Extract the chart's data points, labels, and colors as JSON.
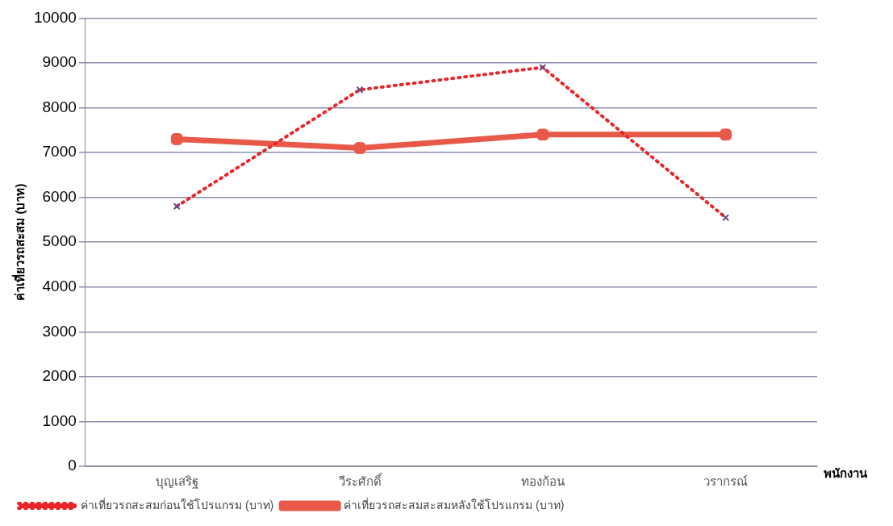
{
  "chart_data": {
    "type": "line",
    "xlabel": "พนักงาน",
    "ylabel": "ค่าเที่ยวรถสะสม (บาท)",
    "categories": [
      "บุญเสริฐ",
      "วีระศักดิ์",
      "ทองก้อน",
      "วรากรณ์"
    ],
    "series": [
      {
        "name": "ค่าเที่ยวรถสะสมก่อนใช้โปรแกรม (บาท)",
        "color": "#e8262a",
        "values": [
          5800,
          8400,
          8900,
          5550
        ],
        "line_style": "dotted",
        "marker": "cross"
      },
      {
        "name": "ค่าเที่ยวรถสะสมสะสมหลังใช้โปรแกรม (บาท)",
        "color": "#e8594a",
        "values": [
          7300,
          7100,
          7400,
          7400
        ],
        "line_style": "solid",
        "marker": "square"
      }
    ],
    "ylim": [
      0,
      10000
    ],
    "yticks": [
      0,
      1000,
      2000,
      3000,
      4000,
      5000,
      6000,
      7000,
      8000,
      9000,
      10000
    ],
    "grid": "y",
    "legend": "bottom left"
  }
}
